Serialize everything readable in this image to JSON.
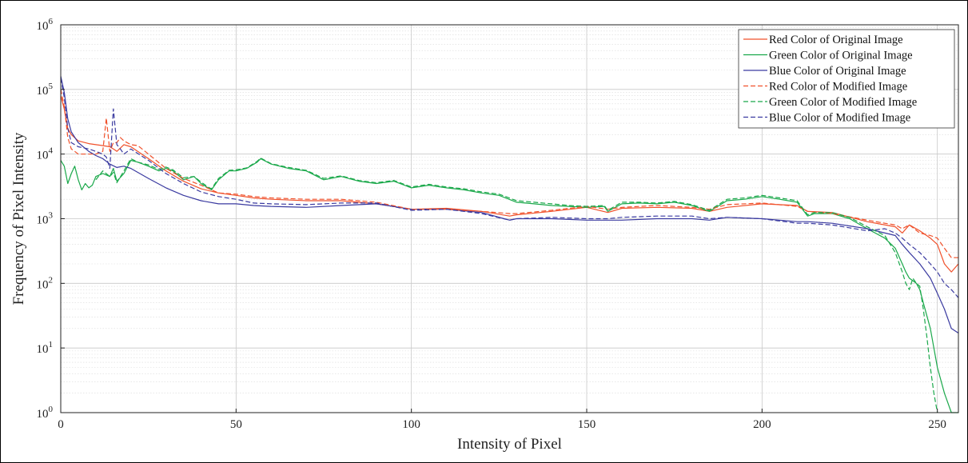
{
  "chart_data": {
    "type": "line",
    "title": "",
    "xlabel": "Intensity of  Pixel",
    "ylabel": "Frequency of  Pixel  Intensity",
    "xlim": [
      0,
      256
    ],
    "ylim": [
      1,
      1000000
    ],
    "yscale": "log",
    "grid": true,
    "legend_position": "top-right",
    "x_ticks": [
      "0",
      "50",
      "100",
      "150",
      "200",
      "250"
    ],
    "x_tick_values": [
      0,
      50,
      100,
      150,
      200,
      250
    ],
    "y_ticks": [
      {
        "base": "10",
        "exp": "0",
        "value": 1
      },
      {
        "base": "10",
        "exp": "1",
        "value": 10
      },
      {
        "base": "10",
        "exp": "2",
        "value": 100
      },
      {
        "base": "10",
        "exp": "3",
        "value": 1000
      },
      {
        "base": "10",
        "exp": "4",
        "value": 10000
      },
      {
        "base": "10",
        "exp": "5",
        "value": 100000
      },
      {
        "base": "10",
        "exp": "6",
        "value": 1000000
      }
    ],
    "series": [
      {
        "name": "Red Color of  Original Image",
        "color": "#f0502a",
        "style": "solid",
        "x": [
          0,
          1,
          2,
          3,
          5,
          8,
          10,
          12,
          14,
          15,
          16,
          18,
          20,
          25,
          30,
          35,
          40,
          45,
          50,
          55,
          60,
          70,
          80,
          90,
          100,
          110,
          120,
          128,
          130,
          140,
          150,
          156,
          160,
          170,
          180,
          185,
          190,
          200,
          210,
          213,
          220,
          230,
          238,
          240,
          242,
          245,
          248,
          250,
          252,
          254,
          256
        ],
        "y": [
          80000,
          50000,
          25000,
          20000,
          16000,
          14500,
          14000,
          13500,
          13000,
          12000,
          11000,
          14000,
          13000,
          8500,
          5500,
          3800,
          2900,
          2500,
          2300,
          2100,
          2000,
          1900,
          1900,
          1700,
          1400,
          1450,
          1300,
          1100,
          1150,
          1300,
          1500,
          1250,
          1450,
          1500,
          1450,
          1300,
          1500,
          1700,
          1600,
          1300,
          1250,
          900,
          750,
          600,
          800,
          650,
          500,
          400,
          200,
          150,
          200
        ]
      },
      {
        "name": "Green Color of  Original Image",
        "color": "#1aa84a",
        "style": "solid",
        "x": [
          0,
          1,
          2,
          3,
          4,
          5,
          6,
          7,
          8,
          9,
          10,
          12,
          14,
          15,
          16,
          18,
          20,
          22,
          25,
          28,
          30,
          32,
          35,
          38,
          40,
          42,
          43,
          45,
          48,
          50,
          53,
          56,
          57,
          60,
          65,
          70,
          75,
          80,
          85,
          90,
          95,
          100,
          105,
          110,
          115,
          120,
          125,
          130,
          135,
          140,
          145,
          150,
          155,
          156,
          160,
          165,
          170,
          175,
          180,
          185,
          190,
          195,
          200,
          205,
          210,
          213,
          215,
          220,
          225,
          230,
          235,
          238,
          240,
          241,
          242,
          243,
          244,
          245,
          246,
          248,
          250,
          252,
          254,
          256
        ],
        "y": [
          8000,
          6500,
          3500,
          5000,
          6500,
          4000,
          2800,
          3500,
          3000,
          3300,
          4500,
          5000,
          4500,
          6000,
          3800,
          5000,
          8000,
          7500,
          6500,
          5500,
          6000,
          5500,
          4000,
          4500,
          3500,
          3000,
          2800,
          4000,
          5500,
          5500,
          6000,
          7500,
          8500,
          7000,
          6000,
          5500,
          4000,
          4500,
          3800,
          3500,
          3800,
          3000,
          3300,
          3000,
          2800,
          2500,
          2300,
          1800,
          1700,
          1600,
          1550,
          1500,
          1550,
          1300,
          1700,
          1750,
          1700,
          1800,
          1600,
          1300,
          1900,
          2000,
          2200,
          2000,
          1800,
          1100,
          1200,
          1200,
          1000,
          700,
          500,
          350,
          200,
          150,
          120,
          110,
          100,
          80,
          50,
          20,
          5,
          2,
          1,
          1
        ]
      },
      {
        "name": "Blue Color of  Original Image",
        "color": "#3a3aa0",
        "style": "solid",
        "x": [
          0,
          1,
          2,
          3,
          5,
          8,
          10,
          12,
          14,
          16,
          18,
          20,
          25,
          30,
          35,
          40,
          45,
          50,
          55,
          60,
          70,
          80,
          90,
          100,
          110,
          120,
          128,
          130,
          140,
          150,
          156,
          160,
          170,
          180,
          185,
          190,
          200,
          210,
          213,
          220,
          230,
          238,
          240,
          242,
          245,
          248,
          250,
          252,
          254,
          256
        ],
        "y": [
          160000,
          90000,
          35000,
          22000,
          15000,
          11000,
          9500,
          8500,
          7000,
          6200,
          6500,
          6000,
          4200,
          3000,
          2300,
          1900,
          1700,
          1700,
          1600,
          1550,
          1500,
          1600,
          1700,
          1400,
          1400,
          1250,
          950,
          1000,
          1000,
          950,
          950,
          950,
          1000,
          1000,
          950,
          1050,
          1000,
          900,
          900,
          850,
          700,
          550,
          400,
          300,
          200,
          120,
          70,
          40,
          20,
          17
        ]
      },
      {
        "name": "Red Color of  Modified Image",
        "color": "#f0502a",
        "style": "dashed",
        "x": [
          0,
          1,
          2,
          3,
          4,
          5,
          8,
          10,
          12,
          13,
          14,
          15,
          16,
          17,
          18,
          20,
          22,
          25,
          30,
          35,
          40,
          45,
          50,
          55,
          60,
          70,
          80,
          90,
          100,
          110,
          120,
          128,
          130,
          140,
          150,
          156,
          160,
          170,
          180,
          185,
          190,
          200,
          210,
          213,
          220,
          230,
          235,
          238,
          240,
          242,
          245,
          248,
          250,
          252,
          254,
          256
        ],
        "y": [
          100000,
          55000,
          18000,
          12000,
          11000,
          10000,
          10000,
          10000,
          11000,
          36000,
          11000,
          15000,
          15000,
          18000,
          16000,
          14000,
          13500,
          10000,
          6000,
          4200,
          3300,
          2500,
          2400,
          2200,
          2100,
          2000,
          2000,
          1800,
          1400,
          1400,
          1300,
          1200,
          1200,
          1350,
          1550,
          1400,
          1500,
          1600,
          1500,
          1400,
          1650,
          1750,
          1550,
          1300,
          1200,
          950,
          850,
          800,
          700,
          800,
          600,
          550,
          500,
          350,
          250,
          250
        ]
      },
      {
        "name": "Green Color of  Modified Image",
        "color": "#1aa84a",
        "style": "dashed",
        "x": [
          10,
          12,
          14,
          15,
          16,
          18,
          20,
          22,
          25,
          28,
          30,
          32,
          35,
          38,
          40,
          42,
          43,
          45,
          48,
          50,
          53,
          56,
          57,
          60,
          65,
          70,
          75,
          80,
          85,
          90,
          95,
          100,
          105,
          110,
          115,
          120,
          125,
          130,
          135,
          140,
          145,
          150,
          155,
          156,
          160,
          165,
          170,
          175,
          180,
          185,
          190,
          195,
          200,
          205,
          210,
          213,
          215,
          220,
          225,
          230,
          235,
          238,
          240,
          241,
          242,
          243,
          244,
          245,
          246,
          247,
          248,
          249,
          250
        ],
        "y": [
          4000,
          5500,
          4500,
          5200,
          3600,
          5500,
          8500,
          7500,
          6800,
          5800,
          6300,
          5700,
          4300,
          4500,
          3700,
          3100,
          2900,
          4200,
          5600,
          5700,
          6100,
          7700,
          8700,
          7100,
          6200,
          5600,
          4200,
          4600,
          3900,
          3600,
          3900,
          3100,
          3400,
          3100,
          2900,
          2600,
          2400,
          1900,
          1800,
          1700,
          1600,
          1550,
          1600,
          1350,
          1800,
          1800,
          1750,
          1850,
          1650,
          1350,
          2000,
          2100,
          2300,
          2100,
          1900,
          1150,
          1250,
          1250,
          1050,
          750,
          550,
          300,
          150,
          100,
          80,
          120,
          100,
          90,
          40,
          15,
          5,
          2,
          1
        ]
      },
      {
        "name": "Blue Color of  Modified Image",
        "color": "#3a3aa0",
        "style": "dashed",
        "x": [
          0,
          1,
          2,
          3,
          5,
          8,
          10,
          12,
          13,
          14,
          15,
          16,
          17,
          18,
          20,
          25,
          30,
          35,
          40,
          45,
          50,
          55,
          60,
          70,
          80,
          90,
          100,
          110,
          120,
          128,
          130,
          140,
          150,
          156,
          160,
          170,
          180,
          185,
          190,
          200,
          210,
          213,
          220,
          230,
          235,
          238,
          240,
          242,
          245,
          248,
          250,
          252,
          254,
          256
        ],
        "y": [
          150000,
          75000,
          25000,
          15000,
          13000,
          12000,
          11000,
          10000,
          9000,
          6000,
          50000,
          14000,
          12000,
          10000,
          12000,
          8000,
          5000,
          3500,
          2600,
          2200,
          2000,
          1750,
          1700,
          1650,
          1750,
          1750,
          1350,
          1400,
          1200,
          950,
          1000,
          1050,
          1000,
          1000,
          1050,
          1100,
          1100,
          1000,
          1050,
          1000,
          850,
          850,
          800,
          650,
          700,
          600,
          500,
          400,
          300,
          200,
          150,
          100,
          80,
          60
        ]
      }
    ]
  }
}
